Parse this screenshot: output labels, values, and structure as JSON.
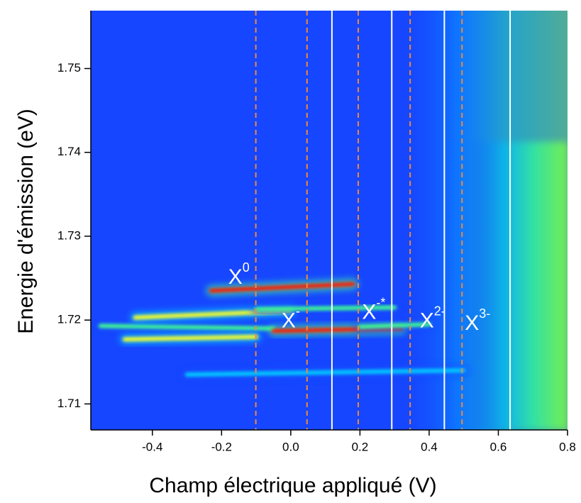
{
  "chart_data": {
    "type": "heatmap",
    "xlabel": "Champ électrique appliqué (V)",
    "ylabel": "Energie d'émission (eV)",
    "xlim": [
      -0.578,
      0.8
    ],
    "ylim": [
      1.7069,
      1.7569
    ],
    "xticks": [
      -0.4,
      -0.2,
      {
        "value": 0,
        "label": "0.0"
      },
      0.2,
      0.4,
      0.6,
      0.8
    ],
    "yticks": [
      1.71,
      1.72,
      1.73,
      1.74,
      1.75
    ],
    "background": "#1646ff",
    "colormap": [
      "#1646ff",
      "#00d0ff",
      "#40ff90",
      "#ffff20",
      "#ff1a00"
    ],
    "solid_lines": {
      "color": "#ffffff",
      "x": [
        0.119,
        0.292,
        0.444,
        0.634
      ]
    },
    "dashed_lines": {
      "color": "#f0883a",
      "x": [
        -0.101,
        0.047,
        0.195,
        0.345,
        0.495
      ]
    },
    "annotations": [
      {
        "text": "X",
        "sup": "0",
        "x": -0.15,
        "y": 1.725
      },
      {
        "text": "X",
        "sup": "-",
        "x": 0.0,
        "y": 1.7198
      },
      {
        "text": "X",
        "sup": "-*",
        "x": 0.24,
        "y": 1.7208
      },
      {
        "text": "X",
        "sup": "2-",
        "x": 0.41,
        "y": 1.7198
      },
      {
        "text": "X",
        "sup": "3-",
        "x": 0.54,
        "y": 1.7195
      }
    ],
    "streaks": [
      {
        "x0": -0.23,
        "x1": 0.18,
        "y0": 1.7235,
        "y1": 1.7243,
        "intensity": 1
      },
      {
        "x0": -0.55,
        "x1": -0.05,
        "y0": 1.7193,
        "y1": 1.719,
        "intensity": 0.6
      },
      {
        "x0": -0.05,
        "x1": 0.32,
        "y0": 1.7187,
        "y1": 1.719,
        "intensity": 1
      },
      {
        "x0": -0.45,
        "x1": 0.0,
        "y0": 1.7203,
        "y1": 1.7211,
        "intensity": 0.7
      },
      {
        "x0": -0.48,
        "x1": -0.1,
        "y0": 1.7177,
        "y1": 1.718,
        "intensity": 0.7
      },
      {
        "x0": 0.27,
        "x1": 0.45,
        "y0": 1.7183,
        "y1": 1.7183,
        "intensity": 1
      },
      {
        "x0": 0.44,
        "x1": 0.62,
        "y0": 1.7177,
        "y1": 1.7177,
        "intensity": 1
      },
      {
        "x0": 0.62,
        "x1": 0.8,
        "y0": 1.7178,
        "y1": 1.7178,
        "intensity": 0.8
      },
      {
        "x0": 0.62,
        "x1": 0.67,
        "y0": 1.716,
        "y1": 1.716,
        "intensity": 1
      },
      {
        "x0": 0.2,
        "x1": 0.4,
        "y0": 1.7192,
        "y1": 1.7195,
        "intensity": 0.5
      },
      {
        "x0": 0.3,
        "x1": 0.44,
        "y0": 1.7112,
        "y1": 1.7112,
        "intensity": 0.5
      },
      {
        "x0": 0.6,
        "x1": 0.8,
        "y0": 1.7487,
        "y1": 1.7487,
        "intensity": 1
      },
      {
        "x0": 0.45,
        "x1": 0.8,
        "y0": 1.7437,
        "y1": 1.7437,
        "intensity": 1
      },
      {
        "x0": 0.45,
        "x1": 0.8,
        "y0": 1.7423,
        "y1": 1.7423,
        "intensity": 0.8
      },
      {
        "x0": 0.35,
        "x1": 0.6,
        "y0": 1.7435,
        "y1": 1.7435,
        "intensity": 0.5
      },
      {
        "x0": 0.2,
        "x1": 0.6,
        "y0": 1.7472,
        "y1": 1.7472,
        "intensity": 0.4
      },
      {
        "x0": -0.1,
        "x1": 0.3,
        "y0": 1.7213,
        "y1": 1.7215,
        "intensity": 0.4
      },
      {
        "x0": -0.3,
        "x1": 0.5,
        "y0": 1.7135,
        "y1": 1.714,
        "intensity": 0.3
      }
    ]
  }
}
